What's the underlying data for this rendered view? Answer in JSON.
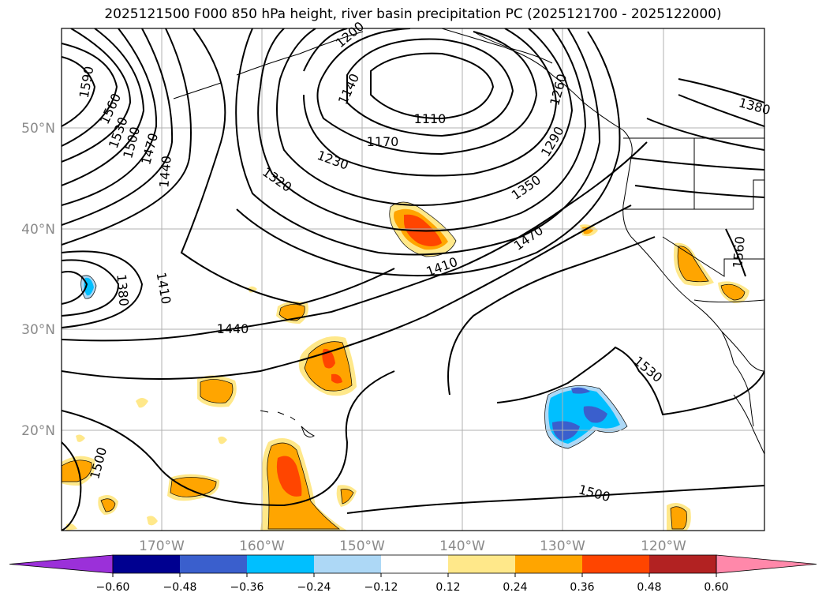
{
  "title": "2025121500 F000 850 hPa height, river basin precipitation PC (2025121700 - 2025122000)",
  "lat_labels": [
    "50°N",
    "40°N",
    "30°N",
    "20°N"
  ],
  "lon_labels": [
    "170°W",
    "160°W",
    "150°W",
    "140°W",
    "130°W",
    "120°W"
  ],
  "contour_labels": [
    "1590",
    "1560",
    "1530",
    "1500",
    "1470",
    "1440",
    "1380",
    "1410",
    "1440",
    "1500",
    "1140",
    "1110",
    "1170",
    "1230",
    "1320",
    "1290",
    "1350",
    "1410",
    "1470",
    "1530",
    "1500",
    "1560",
    "1380",
    "1200",
    "1260"
  ],
  "colorbar": {
    "tick_labels": [
      "−0.60",
      "−0.48",
      "−0.36",
      "−0.24",
      "−0.12",
      "0.12",
      "0.24",
      "0.36",
      "0.48",
      "0.60"
    ],
    "colors": [
      "#9b30d9",
      "#000090",
      "#3a5fcd",
      "#00bfff",
      "#add8f6",
      "#ffffff",
      "#ffe88a",
      "#ffa500",
      "#ff4500",
      "#b22222",
      "#ff88aa"
    ]
  },
  "fills": {
    "yellow": "#ffe88a",
    "orange": "#ffa500",
    "red": "#ff4500",
    "lightblue": "#add8f6",
    "cyan": "#00bfff",
    "blue": "#3a5fcd"
  }
}
